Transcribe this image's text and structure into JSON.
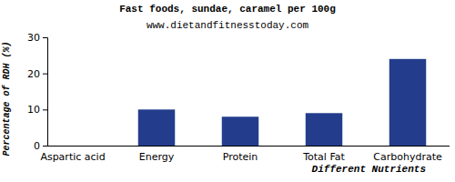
{
  "chart_data": {
    "type": "bar",
    "title": "Fast foods, sundae, caramel per 100g",
    "subtitle": "www.dietandfitnesstoday.com",
    "x_label": "Different Nutrients",
    "y_label": "Percentage of RDH (%)",
    "categories": [
      "Aspartic acid",
      "Energy",
      "Protein",
      "Total Fat",
      "Carbohydrate"
    ],
    "values": [
      0,
      10,
      8,
      9,
      24
    ],
    "color": "#233d8c",
    "ylim": [
      0,
      30
    ],
    "yticks": [
      0,
      10,
      20,
      30
    ],
    "grid": false
  }
}
